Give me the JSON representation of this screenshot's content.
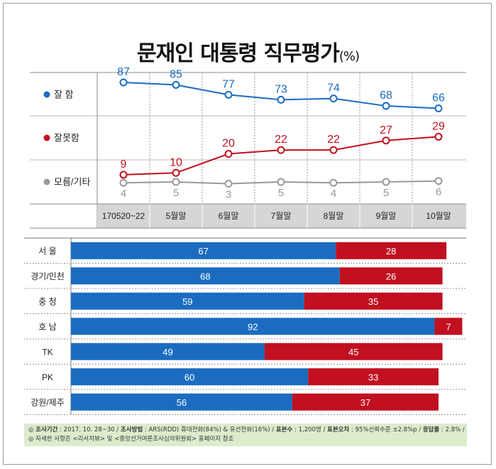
{
  "title": "문재인 대통령 직무평가",
  "title_unit": "(%)",
  "colors": {
    "approve": "#1b6cc0",
    "disapprove": "#c1101f",
    "other": "#999999",
    "axis_bg": "#d6d6d6"
  },
  "chart_data": [
    {
      "type": "line",
      "categories": [
        "170520~22",
        "5월말",
        "6월말",
        "7월말",
        "8월말",
        "9월말",
        "10월말"
      ],
      "series": [
        {
          "name": "잘  함",
          "values": [
            87,
            85,
            77,
            73,
            74,
            68,
            66
          ]
        },
        {
          "name": "잘못함",
          "values": [
            9,
            10,
            20,
            22,
            22,
            27,
            29
          ]
        },
        {
          "name": "모름/기타",
          "values": [
            4,
            5,
            3,
            5,
            4,
            5,
            6
          ]
        }
      ]
    },
    {
      "type": "bar",
      "orientation": "horizontal",
      "stacked": true,
      "categories": [
        "서  울",
        "경기/인천",
        "충  청",
        "호  남",
        "TK",
        "PK",
        "강원/제주"
      ],
      "series": [
        {
          "name": "잘  함",
          "values": [
            67,
            68,
            59,
            92,
            49,
            60,
            56
          ]
        },
        {
          "name": "잘못함",
          "values": [
            28,
            26,
            35,
            7,
            45,
            33,
            37
          ]
        }
      ]
    }
  ],
  "footnote": {
    "line1_parts": [
      {
        "label": "조사기간",
        "text": " : 2017. 10. 28~30 / "
      },
      {
        "label": "조사방법",
        "text": " : ARS(RDD) 휴대전화(84%) & 유선전화(16%) / "
      },
      {
        "label": "표본수",
        "text": " : 1,200명 / "
      },
      {
        "label": "표본오차",
        "text": " : 95%신뢰수준 ±2.8%p / "
      },
      {
        "label": "응답률",
        "text": " : 2.8% / "
      },
      {
        "label": "조사주관",
        "text": " : 리서치뷰"
      }
    ],
    "line2": "◎ 자세한 사항은 <리서치뷰> 및 <중앙선거여론조사심의위원회> 홈페이지 참조"
  }
}
